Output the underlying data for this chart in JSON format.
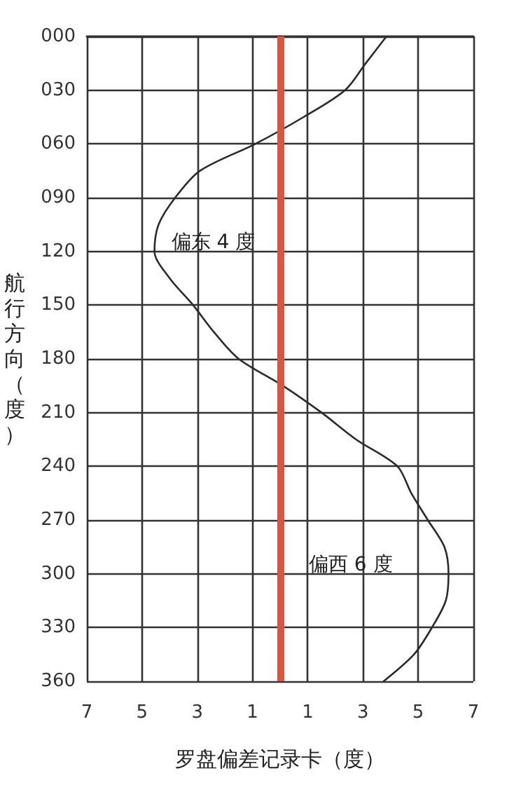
{
  "chart_data": {
    "type": "line",
    "xlabel": "罗盘偏差记录卡（度）",
    "ylabel": "航行方向（度）",
    "xlim": [
      -7,
      7
    ],
    "xticks": [
      {
        "value": -7,
        "label": "7"
      },
      {
        "value": -5,
        "label": "5"
      },
      {
        "value": -3,
        "label": "3"
      },
      {
        "value": -1,
        "label": "1"
      },
      {
        "value": 1,
        "label": "1"
      },
      {
        "value": 3,
        "label": "3"
      },
      {
        "value": 5,
        "label": "5"
      },
      {
        "value": 7,
        "label": "7"
      }
    ],
    "ylim": [
      360,
      0
    ],
    "yticks": [
      {
        "value": 0,
        "label": "000"
      },
      {
        "value": 30,
        "label": "030"
      },
      {
        "value": 60,
        "label": "060"
      },
      {
        "value": 90,
        "label": "090"
      },
      120,
      150,
      180,
      210,
      240,
      270,
      300,
      330,
      360
    ],
    "series": [
      {
        "color": "#2b2b2b",
        "x": [
          3.85,
          3.1,
          2.35,
          0.85,
          -0.9,
          -2.9,
          -3.8,
          -4.4,
          -4.55,
          -4.0,
          -3.15,
          -2.4,
          -1.5,
          0.1,
          1.5,
          2.75,
          4.25,
          4.75,
          5.35,
          5.95,
          6.1,
          6.0,
          5.5,
          4.85,
          3.75
        ],
        "values": [
          0,
          15,
          30,
          45,
          60,
          75,
          90,
          105,
          120,
          135,
          150,
          165,
          180,
          195,
          210,
          225,
          240,
          255,
          270,
          285,
          300,
          315,
          330,
          345,
          360
        ]
      }
    ],
    "ref_lines": [
      {
        "axis": "x",
        "value": 0,
        "color": "#d9553f"
      }
    ],
    "annotations": [
      {
        "text": "偏东 4 度",
        "x": -4.55,
        "y": 115
      },
      {
        "text": "偏西 6 度",
        "x": 6.1,
        "y": 295
      }
    ],
    "grid": true,
    "marker": "none",
    "line_style": "solid"
  }
}
